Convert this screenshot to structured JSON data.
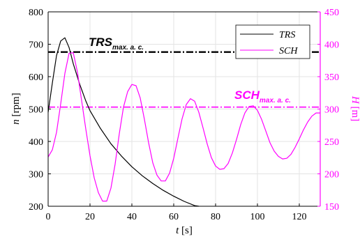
{
  "chart_data": {
    "type": "line",
    "xlabel": {
      "var": "t",
      "unit": " [s]"
    },
    "ylabel_left": {
      "var": "n",
      "unit": " [rpm]"
    },
    "ylabel_right": {
      "var": "H",
      "unit": " [m]"
    },
    "xlim": [
      0,
      130
    ],
    "ylim_left": [
      200,
      800
    ],
    "ylim_right": [
      150,
      450
    ],
    "x_ticks": [
      "0",
      "20",
      "40",
      "60",
      "80",
      "100",
      "120"
    ],
    "y_left_ticks": [
      "200",
      "300",
      "400",
      "500",
      "600",
      "700",
      "800"
    ],
    "y_right_ticks": [
      "150",
      "200",
      "250",
      "300",
      "350",
      "400",
      "450"
    ],
    "grid": true,
    "legend_position": "top-right",
    "colors": {
      "TRS": "#000000",
      "SCH": "#ff00ff"
    },
    "series": [
      {
        "name": "TRS",
        "axis": "left",
        "x": [
          0,
          2,
          4,
          6,
          8,
          10,
          12,
          15,
          18,
          20,
          25,
          30,
          35,
          40,
          45,
          50,
          55,
          60,
          65,
          70,
          72
        ],
        "y": [
          490,
          580,
          665,
          710,
          720,
          690,
          640,
          578,
          525,
          495,
          440,
          393,
          355,
          322,
          294,
          270,
          249,
          231,
          215,
          202,
          200
        ]
      },
      {
        "name": "SCH",
        "axis": "right",
        "x": [
          0,
          2,
          4,
          6,
          8,
          10,
          12,
          14,
          16,
          18,
          20,
          22,
          24,
          26,
          28,
          30,
          32,
          34,
          36,
          38,
          40,
          42,
          44,
          46,
          48,
          50,
          52,
          54,
          56,
          58,
          60,
          62,
          64,
          66,
          68,
          70,
          72,
          74,
          76,
          78,
          80,
          82,
          84,
          86,
          88,
          90,
          92,
          94,
          96,
          98,
          100,
          102,
          104,
          106,
          108,
          110,
          112,
          114,
          116,
          118,
          120,
          122,
          124,
          126,
          128,
          130
        ],
        "y": [
          226,
          237,
          264,
          308,
          355,
          386,
          387,
          357,
          313,
          269,
          228,
          194,
          171,
          158,
          158,
          178,
          215,
          262,
          303,
          327,
          338,
          336,
          317,
          284,
          248,
          217,
          198,
          189,
          189,
          201,
          224,
          255,
          285,
          307,
          316,
          312,
          295,
          271,
          246,
          225,
          212,
          207,
          208,
          216,
          232,
          253,
          276,
          294,
          304,
          305,
          298,
          284,
          266,
          248,
          235,
          227,
          223,
          224,
          230,
          241,
          254,
          268,
          280,
          289,
          294,
          294
        ]
      }
    ],
    "thresholds": [
      {
        "series": "TRS",
        "axis": "left",
        "y": 676,
        "label_main": "TRS",
        "label_sub": "max. a. c."
      },
      {
        "series": "SCH",
        "axis": "right",
        "y": 303,
        "label_main": "SCH",
        "label_sub": "max. a. c."
      }
    ]
  }
}
